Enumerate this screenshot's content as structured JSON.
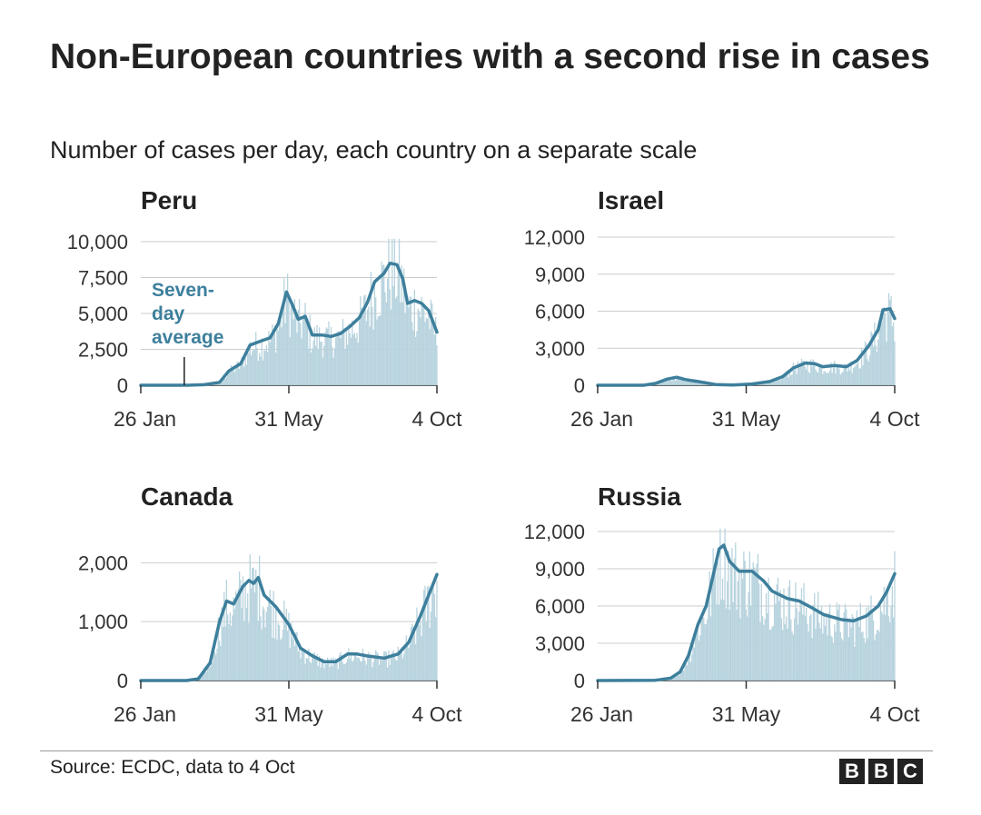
{
  "title": "Non-European countries with a second rise in cases",
  "subtitle": "Number of cases per day, each country on a separate scale",
  "source": "Source: ECDC, data to 4 Oct",
  "logo": {
    "letters": [
      "B",
      "B",
      "C"
    ]
  },
  "colors": {
    "line": "#3d7f9c",
    "bars": "#b7d3de",
    "grid": "#cccccc",
    "axis": "#333333"
  },
  "annotation": {
    "lines": [
      "Seven-",
      "day",
      "average"
    ],
    "chart": "Peru",
    "x_date": "2020-03-03"
  },
  "chart_data": [
    {
      "type": "bar",
      "title": "Peru",
      "x_start": "2020-01-26",
      "x_end": "2020-10-04",
      "xticks": [
        {
          "date": "2020-01-26",
          "label": "26 Jan"
        },
        {
          "date": "2020-05-31",
          "label": "31 May"
        },
        {
          "date": "2020-10-04",
          "label": "4 Oct"
        }
      ],
      "yticks": [
        {
          "value": 0,
          "label": "0"
        },
        {
          "value": 2500,
          "label": "2,500"
        },
        {
          "value": 5000,
          "label": "5,000"
        },
        {
          "value": 7500,
          "label": "7,500"
        },
        {
          "value": 10000,
          "label": "10,000"
        }
      ],
      "ylim": [
        0,
        10000
      ],
      "series": [
        {
          "name": "Seven-day average",
          "type": "line",
          "points": [
            [
              "2020-01-26",
              0
            ],
            [
              "2020-03-06",
              0
            ],
            [
              "2020-03-20",
              40
            ],
            [
              "2020-04-02",
              200
            ],
            [
              "2020-04-10",
              1000
            ],
            [
              "2020-04-20",
              1500
            ],
            [
              "2020-04-28",
              2800
            ],
            [
              "2020-05-08",
              3100
            ],
            [
              "2020-05-15",
              3300
            ],
            [
              "2020-05-22",
              4300
            ],
            [
              "2020-05-29",
              6500
            ],
            [
              "2020-06-03",
              5600
            ],
            [
              "2020-06-08",
              4600
            ],
            [
              "2020-06-14",
              4800
            ],
            [
              "2020-06-20",
              3500
            ],
            [
              "2020-06-28",
              3500
            ],
            [
              "2020-07-06",
              3400
            ],
            [
              "2020-07-14",
              3600
            ],
            [
              "2020-07-22",
              4100
            ],
            [
              "2020-07-30",
              4700
            ],
            [
              "2020-08-06",
              5800
            ],
            [
              "2020-08-12",
              7200
            ],
            [
              "2020-08-20",
              7800
            ],
            [
              "2020-08-25",
              8500
            ],
            [
              "2020-08-31",
              8400
            ],
            [
              "2020-09-05",
              7400
            ],
            [
              "2020-09-09",
              5700
            ],
            [
              "2020-09-15",
              5900
            ],
            [
              "2020-09-21",
              5700
            ],
            [
              "2020-09-27",
              5200
            ],
            [
              "2020-10-04",
              3700
            ]
          ]
        }
      ]
    },
    {
      "type": "bar",
      "title": "Israel",
      "x_start": "2020-01-26",
      "x_end": "2020-10-04",
      "xticks": [
        {
          "date": "2020-01-26",
          "label": "26 Jan"
        },
        {
          "date": "2020-05-31",
          "label": "31 May"
        },
        {
          "date": "2020-10-04",
          "label": "4 Oct"
        }
      ],
      "yticks": [
        {
          "value": 0,
          "label": "0"
        },
        {
          "value": 3000,
          "label": "3,000"
        },
        {
          "value": 6000,
          "label": "6,000"
        },
        {
          "value": 9000,
          "label": "9,000"
        },
        {
          "value": 12000,
          "label": "12,000"
        }
      ],
      "ylim": [
        0,
        12000
      ],
      "series": [
        {
          "name": "Seven-day average",
          "type": "line",
          "points": [
            [
              "2020-01-26",
              0
            ],
            [
              "2020-03-05",
              0
            ],
            [
              "2020-03-15",
              150
            ],
            [
              "2020-03-25",
              500
            ],
            [
              "2020-04-02",
              650
            ],
            [
              "2020-04-10",
              450
            ],
            [
              "2020-04-20",
              300
            ],
            [
              "2020-05-05",
              60
            ],
            [
              "2020-05-20",
              20
            ],
            [
              "2020-06-05",
              100
            ],
            [
              "2020-06-20",
              300
            ],
            [
              "2020-07-01",
              700
            ],
            [
              "2020-07-10",
              1400
            ],
            [
              "2020-07-20",
              1800
            ],
            [
              "2020-07-28",
              1750
            ],
            [
              "2020-08-04",
              1500
            ],
            [
              "2020-08-14",
              1600
            ],
            [
              "2020-08-24",
              1500
            ],
            [
              "2020-09-02",
              2000
            ],
            [
              "2020-09-12",
              3200
            ],
            [
              "2020-09-20",
              4500
            ],
            [
              "2020-09-24",
              6100
            ],
            [
              "2020-09-30",
              6200
            ],
            [
              "2020-10-04",
              5400
            ]
          ]
        }
      ]
    },
    {
      "type": "bar",
      "title": "Canada",
      "x_start": "2020-01-26",
      "x_end": "2020-10-04",
      "xticks": [
        {
          "date": "2020-01-26",
          "label": "26 Jan"
        },
        {
          "date": "2020-05-31",
          "label": "31 May"
        },
        {
          "date": "2020-10-04",
          "label": "4 Oct"
        }
      ],
      "yticks": [
        {
          "value": 0,
          "label": "0"
        },
        {
          "value": 1000,
          "label": "1,000"
        },
        {
          "value": 2000,
          "label": "2,000"
        }
      ],
      "ylim": [
        0,
        2700
      ],
      "series": [
        {
          "name": "Seven-day average",
          "type": "line",
          "points": [
            [
              "2020-01-26",
              0
            ],
            [
              "2020-03-05",
              0
            ],
            [
              "2020-03-15",
              30
            ],
            [
              "2020-03-25",
              300
            ],
            [
              "2020-04-02",
              1000
            ],
            [
              "2020-04-08",
              1350
            ],
            [
              "2020-04-14",
              1300
            ],
            [
              "2020-04-22",
              1600
            ],
            [
              "2020-04-27",
              1700
            ],
            [
              "2020-05-01",
              1650
            ],
            [
              "2020-05-05",
              1750
            ],
            [
              "2020-05-10",
              1450
            ],
            [
              "2020-05-20",
              1250
            ],
            [
              "2020-05-31",
              950
            ],
            [
              "2020-06-10",
              550
            ],
            [
              "2020-06-20",
              420
            ],
            [
              "2020-06-30",
              320
            ],
            [
              "2020-07-10",
              320
            ],
            [
              "2020-07-20",
              450
            ],
            [
              "2020-07-28",
              450
            ],
            [
              "2020-08-05",
              420
            ],
            [
              "2020-08-20",
              380
            ],
            [
              "2020-09-01",
              450
            ],
            [
              "2020-09-10",
              650
            ],
            [
              "2020-09-20",
              1100
            ],
            [
              "2020-10-04",
              1800
            ]
          ]
        }
      ]
    },
    {
      "type": "bar",
      "title": "Russia",
      "x_start": "2020-01-26",
      "x_end": "2020-10-04",
      "xticks": [
        {
          "date": "2020-01-26",
          "label": "26 Jan"
        },
        {
          "date": "2020-05-31",
          "label": "31 May"
        },
        {
          "date": "2020-10-04",
          "label": "4 Oct"
        }
      ],
      "yticks": [
        {
          "value": 0,
          "label": "0"
        },
        {
          "value": 3000,
          "label": "3,000"
        },
        {
          "value": 6000,
          "label": "6,000"
        },
        {
          "value": 9000,
          "label": "9,000"
        },
        {
          "value": 12000,
          "label": "12,000"
        }
      ],
      "ylim": [
        0,
        12000
      ],
      "series": [
        {
          "name": "Seven-day average",
          "type": "line",
          "points": [
            [
              "2020-01-26",
              0
            ],
            [
              "2020-03-15",
              20
            ],
            [
              "2020-03-28",
              200
            ],
            [
              "2020-04-05",
              700
            ],
            [
              "2020-04-12",
              2000
            ],
            [
              "2020-04-20",
              4500
            ],
            [
              "2020-04-27",
              6000
            ],
            [
              "2020-05-03",
              8500
            ],
            [
              "2020-05-08",
              10600
            ],
            [
              "2020-05-12",
              10900
            ],
            [
              "2020-05-17",
              9600
            ],
            [
              "2020-05-25",
              8800
            ],
            [
              "2020-06-05",
              8800
            ],
            [
              "2020-06-15",
              8000
            ],
            [
              "2020-06-22",
              7200
            ],
            [
              "2020-07-05",
              6600
            ],
            [
              "2020-07-15",
              6400
            ],
            [
              "2020-07-25",
              5900
            ],
            [
              "2020-08-05",
              5300
            ],
            [
              "2020-08-20",
              4900
            ],
            [
              "2020-08-30",
              4800
            ],
            [
              "2020-09-10",
              5200
            ],
            [
              "2020-09-20",
              6000
            ],
            [
              "2020-09-27",
              7100
            ],
            [
              "2020-10-04",
              8600
            ]
          ]
        }
      ]
    }
  ]
}
